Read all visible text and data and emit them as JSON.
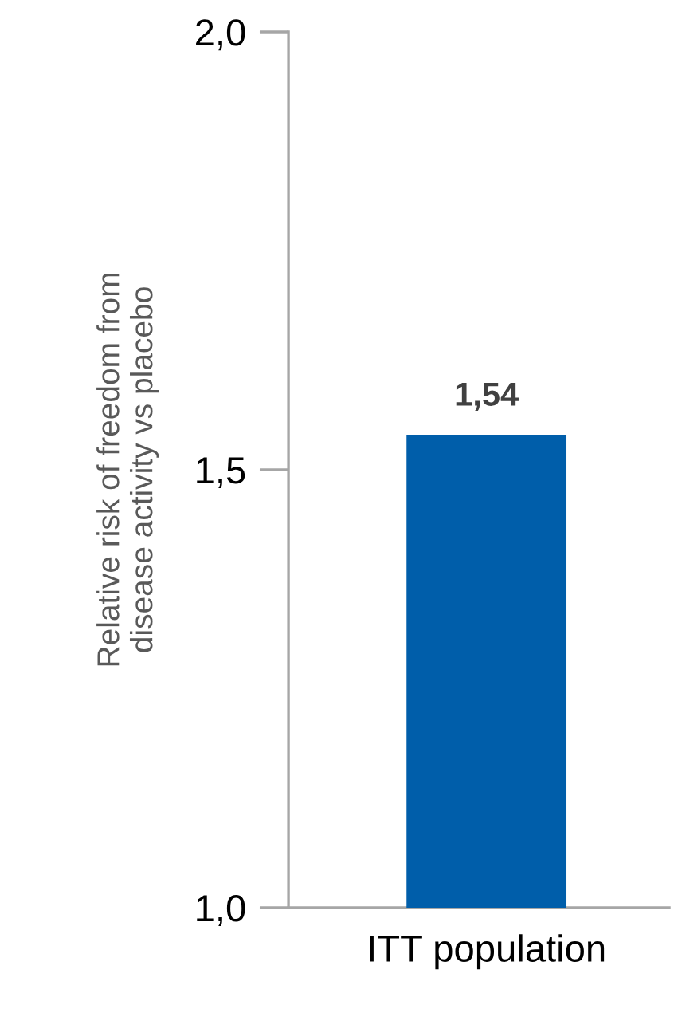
{
  "chart_data": {
    "type": "bar",
    "ylabel": "Relative risk of freedom from\ndisease activity vs placebo",
    "categories": [
      "ITT population"
    ],
    "values": [
      1.54
    ],
    "value_labels": [
      "1,54"
    ],
    "color": "#005eaa",
    "ylim": [
      1.0,
      2.0
    ],
    "yticks": [
      {
        "value": 1.0,
        "label": "1,0"
      },
      {
        "value": 1.5,
        "label": "1,5"
      },
      {
        "value": 2.0,
        "label": "2,0"
      }
    ],
    "grid": false,
    "legend": false
  }
}
